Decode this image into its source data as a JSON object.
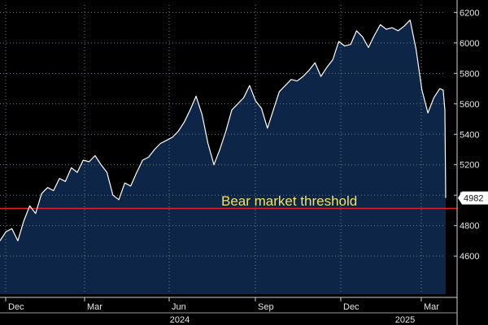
{
  "chart_data": {
    "type": "area",
    "title": "",
    "xlabel": "",
    "ylabel": "",
    "ylim": [
      4350,
      6250
    ],
    "y_ticks": [
      4600,
      4800,
      5000,
      5200,
      5400,
      5600,
      5800,
      6000,
      6200
    ],
    "x_month_labels": [
      "Dec",
      "Mar",
      "Jun",
      "Sep",
      "Dec",
      "Mar"
    ],
    "x_year_labels": [
      "2024",
      "2025"
    ],
    "grid": true,
    "colors": {
      "area_fill": "#0d2547",
      "line": "#ffffff",
      "threshold": "#e0202c",
      "annotation": "#f2e35c",
      "grid": "#6b7a8c",
      "last_label_bg": "#ffffff"
    },
    "threshold": {
      "value": 4913,
      "label": "Bear market threshold"
    },
    "last_value_label": "4982",
    "series": [
      {
        "x": [
          "2023-10-27",
          "2023-11-03",
          "2023-11-10",
          "2023-11-17",
          "2023-11-24",
          "2023-12-01",
          "2023-12-08",
          "2023-12-15",
          "2023-12-22",
          "2023-12-29",
          "2024-01-05",
          "2024-01-12",
          "2024-01-19",
          "2024-01-26",
          "2024-02-02",
          "2024-02-09",
          "2024-02-16",
          "2024-02-23",
          "2024-03-01",
          "2024-03-08",
          "2024-03-15",
          "2024-03-22",
          "2024-03-29",
          "2024-04-05",
          "2024-04-12",
          "2024-04-19",
          "2024-04-26",
          "2024-05-03",
          "2024-05-10",
          "2024-05-17",
          "2024-05-24",
          "2024-05-31",
          "2024-06-07",
          "2024-06-14",
          "2024-06-21",
          "2024-06-28",
          "2024-07-05",
          "2024-07-12",
          "2024-07-19",
          "2024-07-26",
          "2024-08-02",
          "2024-08-09",
          "2024-08-16",
          "2024-08-23",
          "2024-08-30",
          "2024-09-06",
          "2024-09-13",
          "2024-09-20",
          "2024-09-27",
          "2024-10-04",
          "2024-10-11",
          "2024-10-18",
          "2024-10-25",
          "2024-11-01",
          "2024-11-08",
          "2024-11-15",
          "2024-11-22",
          "2024-11-29",
          "2024-12-06",
          "2024-12-13",
          "2024-12-20",
          "2024-12-27",
          "2025-01-03",
          "2025-01-10",
          "2025-01-17",
          "2025-01-24",
          "2025-01-31",
          "2025-02-07",
          "2025-02-14",
          "2025-02-21",
          "2025-02-28",
          "2025-03-07",
          "2025-03-14",
          "2025-03-21",
          "2025-03-28",
          "2025-04-01",
          "2025-04-03",
          "2025-04-04"
        ],
        "values": [
          4700,
          4760,
          4780,
          4700,
          4830,
          4930,
          4880,
          5010,
          5050,
          5030,
          5110,
          5090,
          5180,
          5150,
          5230,
          5220,
          5260,
          5200,
          5150,
          5000,
          4970,
          5080,
          5060,
          5150,
          5230,
          5250,
          5300,
          5340,
          5360,
          5380,
          5420,
          5480,
          5560,
          5650,
          5530,
          5340,
          5200,
          5300,
          5420,
          5560,
          5600,
          5640,
          5720,
          5620,
          5570,
          5440,
          5560,
          5680,
          5720,
          5760,
          5750,
          5780,
          5820,
          5870,
          5780,
          5840,
          5890,
          6010,
          5980,
          5990,
          6080,
          6040,
          5970,
          6050,
          6120,
          6090,
          6100,
          6080,
          6110,
          6150,
          5960,
          5690,
          5540,
          5640,
          5700,
          5690,
          5560,
          4982
        ]
      }
    ]
  }
}
